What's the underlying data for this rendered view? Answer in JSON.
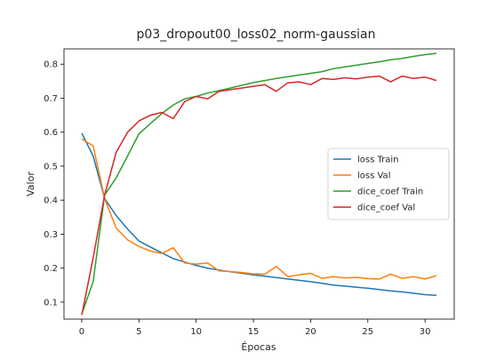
{
  "chart_data": {
    "type": "line",
    "title": "p03_dropout00_loss02_norm-gaussian",
    "xlabel": "Épocas",
    "ylabel": "Valor",
    "xlim": [
      -1.55,
      32.55
    ],
    "ylim": [
      0.05,
      0.845
    ],
    "x_ticks": [
      0,
      5,
      10,
      15,
      20,
      25,
      30
    ],
    "y_ticks": [
      0.1,
      0.2,
      0.3,
      0.4,
      0.5,
      0.6,
      0.7,
      0.8
    ],
    "y_tick_labels": [
      "0.1",
      "0.2",
      "0.3",
      "0.4",
      "0.5",
      "0.6",
      "0.7",
      "0.8"
    ],
    "grid": false,
    "legend_position": "center-right",
    "x": [
      0,
      1,
      2,
      3,
      4,
      5,
      6,
      7,
      8,
      9,
      10,
      11,
      12,
      13,
      14,
      15,
      16,
      17,
      18,
      19,
      20,
      21,
      22,
      23,
      24,
      25,
      26,
      27,
      28,
      29,
      30,
      31
    ],
    "series": [
      {
        "name": "loss Train",
        "color": "#1f77b4",
        "values": [
          0.597,
          0.53,
          0.405,
          0.355,
          0.315,
          0.28,
          0.262,
          0.245,
          0.228,
          0.218,
          0.208,
          0.2,
          0.194,
          0.189,
          0.185,
          0.18,
          0.176,
          0.172,
          0.168,
          0.164,
          0.16,
          0.155,
          0.15,
          0.147,
          0.144,
          0.141,
          0.137,
          0.133,
          0.13,
          0.126,
          0.122,
          0.12
        ]
      },
      {
        "name": "loss Val",
        "color": "#ff7f0e",
        "values": [
          0.58,
          0.56,
          0.405,
          0.318,
          0.283,
          0.264,
          0.25,
          0.243,
          0.26,
          0.215,
          0.212,
          0.215,
          0.192,
          0.19,
          0.187,
          0.183,
          0.182,
          0.205,
          0.175,
          0.18,
          0.185,
          0.17,
          0.175,
          0.171,
          0.173,
          0.169,
          0.168,
          0.182,
          0.17,
          0.175,
          0.168,
          0.178
        ]
      },
      {
        "name": "dice_coef Train",
        "color": "#2ca02c",
        "values": [
          0.065,
          0.16,
          0.415,
          0.465,
          0.53,
          0.595,
          0.625,
          0.655,
          0.68,
          0.698,
          0.705,
          0.715,
          0.722,
          0.73,
          0.738,
          0.746,
          0.752,
          0.758,
          0.763,
          0.768,
          0.773,
          0.778,
          0.787,
          0.792,
          0.797,
          0.802,
          0.807,
          0.813,
          0.817,
          0.823,
          0.828,
          0.832
        ]
      },
      {
        "name": "dice_coef Val",
        "color": "#d62728",
        "values": [
          0.062,
          0.23,
          0.415,
          0.54,
          0.6,
          0.633,
          0.65,
          0.658,
          0.64,
          0.69,
          0.705,
          0.698,
          0.72,
          0.725,
          0.73,
          0.735,
          0.74,
          0.72,
          0.745,
          0.748,
          0.74,
          0.758,
          0.755,
          0.76,
          0.757,
          0.762,
          0.765,
          0.748,
          0.765,
          0.758,
          0.762,
          0.752
        ]
      }
    ]
  }
}
